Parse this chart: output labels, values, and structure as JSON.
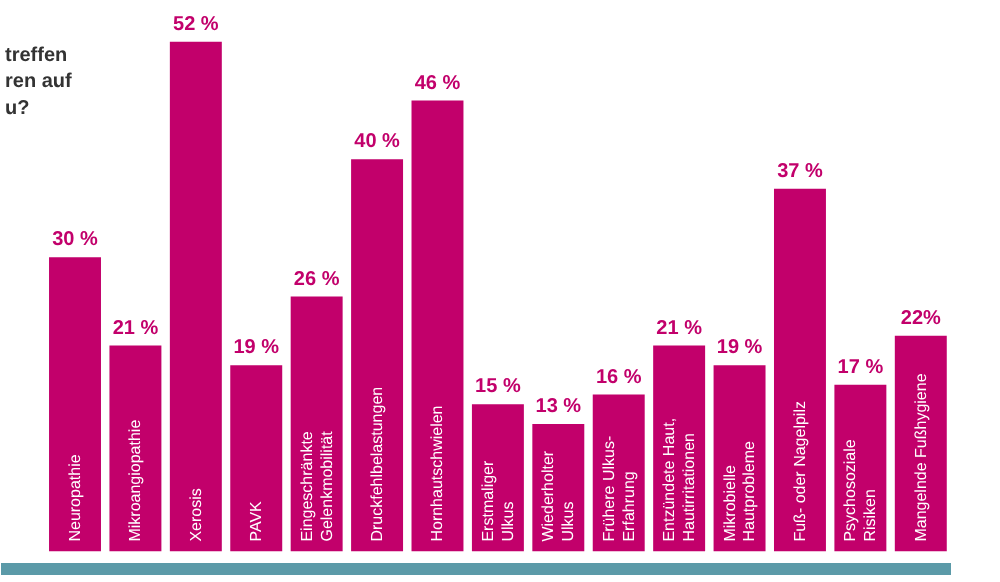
{
  "chart_data": {
    "type": "bar",
    "title": "treffen\nren auf\nu?",
    "categories": [
      "Neuropathie",
      "Mikroangiopathie",
      "Xerosis",
      "PAVK",
      "Eingeschränkte\nGelenkmobilität",
      "Druckfehlbelastungen",
      "Hornhautschwielen",
      "Erstmaliger\nUlkus",
      "Wiederholter\nUlkus",
      "Frühere Ulkus-\nErfahrung",
      "Entzündete Haut,\nHautirritationen",
      "Mikrobielle\nHautprobleme",
      "Fuß- oder Nagelpilz",
      "Psychosoziale\nRisiken",
      "Mangelnde Fußhygiene"
    ],
    "values": [
      30,
      21,
      52,
      19,
      26,
      40,
      46,
      15,
      13,
      16,
      21,
      19,
      37,
      17,
      22
    ],
    "value_labels": [
      "30 %",
      "21 %",
      "52 %",
      "19 %",
      "26 %",
      "40 %",
      "46 %",
      "15 %",
      "13 %",
      "16 %",
      "21 %",
      "19 %",
      "37 %",
      "17 %",
      "22%"
    ],
    "color": "#c2006b",
    "grid": false
  }
}
